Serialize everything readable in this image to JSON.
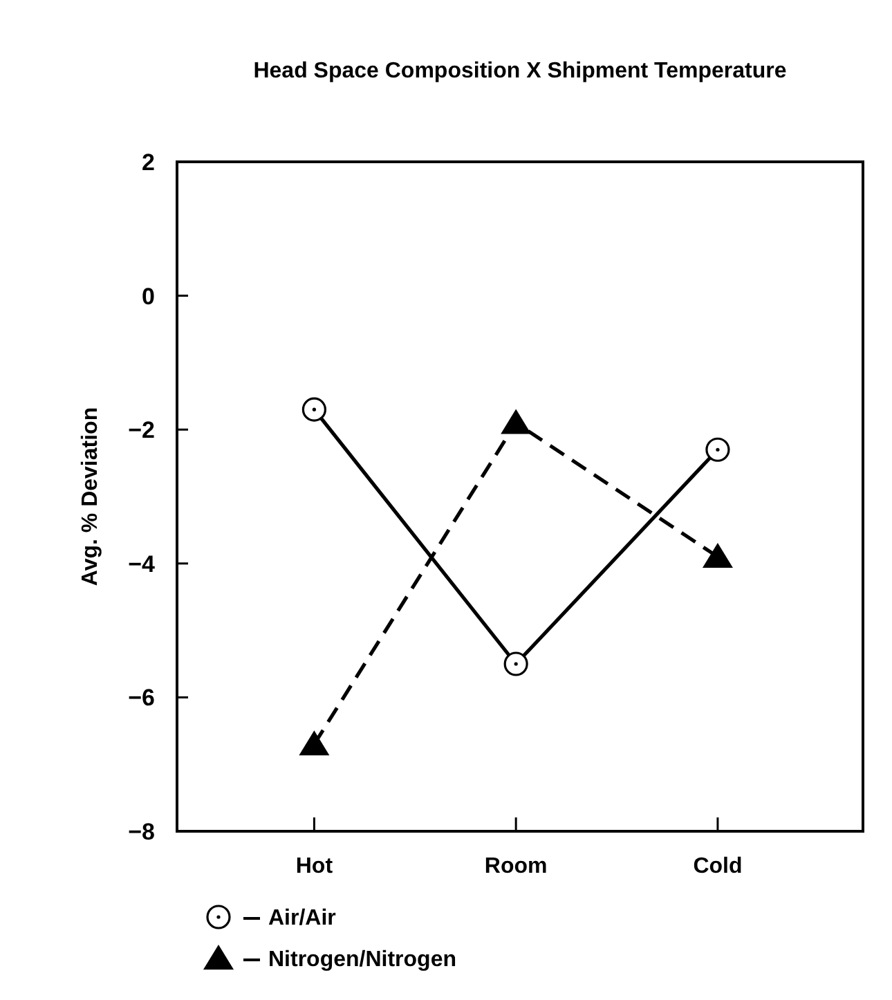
{
  "chart_data": {
    "type": "line",
    "title": "Head Space Composition X Shipment Temperature",
    "ylabel": "Avg. % Deviation",
    "categories": [
      "Hot",
      "Room",
      "Cold"
    ],
    "ylim": [
      -8,
      2
    ],
    "yticks": [
      2,
      0,
      -2,
      -4,
      -6,
      -8
    ],
    "grid": false,
    "legend": "bottom left",
    "series": [
      {
        "name": "Air/Air",
        "color": "#000000",
        "values": [
          -1.7,
          -5.5,
          -2.3
        ],
        "marker": "circle",
        "line_style": "solid"
      },
      {
        "name": "Nitrogen/Nitrogen",
        "color": "#000000",
        "values": [
          -6.7,
          -1.9,
          -3.9
        ],
        "marker": "triangle",
        "line_style": "dashed"
      }
    ]
  }
}
